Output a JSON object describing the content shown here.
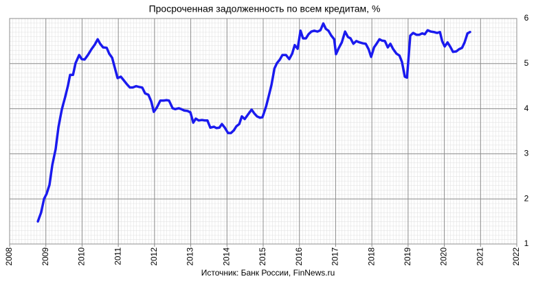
{
  "chart_data": {
    "type": "line",
    "title": "Просроченная задолженность по всем кредитам, %",
    "source": "Источник: Банк России, FinNews.ru",
    "color": "#1a1aee",
    "grid": true,
    "xlim": [
      2008,
      2022
    ],
    "xticks": [
      2008,
      2009,
      2010,
      2011,
      2012,
      2013,
      2014,
      2015,
      2016,
      2017,
      2018,
      2019,
      2020,
      2021,
      2022
    ],
    "ylim": [
      1,
      6
    ],
    "yticks": [
      1,
      2,
      3,
      4,
      5,
      6
    ],
    "x": [
      2008.78,
      2008.87,
      2008.95,
      2009.02,
      2009.1,
      2009.18,
      2009.27,
      2009.35,
      2009.44,
      2009.54,
      2009.61,
      2009.67,
      2009.75,
      2009.82,
      2009.92,
      2009.99,
      2010.07,
      2010.16,
      2010.26,
      2010.35,
      2010.43,
      2010.5,
      2010.58,
      2010.68,
      2010.75,
      2010.83,
      2010.9,
      2010.98,
      2011.07,
      2011.15,
      2011.24,
      2011.32,
      2011.4,
      2011.49,
      2011.59,
      2011.66,
      2011.74,
      2011.83,
      2011.91,
      2011.98,
      2012.06,
      2012.16,
      2012.25,
      2012.33,
      2012.4,
      2012.5,
      2012.57,
      2012.67,
      2012.74,
      2012.82,
      2012.91,
      2012.99,
      2013.07,
      2013.14,
      2013.22,
      2013.31,
      2013.39,
      2013.46,
      2013.54,
      2013.64,
      2013.71,
      2013.79,
      2013.86,
      2013.94,
      2014.03,
      2014.11,
      2014.19,
      2014.26,
      2014.34,
      2014.41,
      2014.49,
      2014.58,
      2014.68,
      2014.76,
      2014.83,
      2014.91,
      2014.98,
      2015.08,
      2015.15,
      2015.23,
      2015.31,
      2015.38,
      2015.46,
      2015.53,
      2015.63,
      2015.72,
      2015.8,
      2015.87,
      2015.95,
      2016.03,
      2016.1,
      2016.18,
      2016.25,
      2016.33,
      2016.41,
      2016.5,
      2016.58,
      2016.66,
      2016.73,
      2016.8,
      2016.88,
      2016.96,
      2017.01,
      2017.09,
      2017.17,
      2017.26,
      2017.34,
      2017.41,
      2017.49,
      2017.57,
      2017.66,
      2017.75,
      2017.83,
      2017.91,
      2017.98,
      2018.06,
      2018.13,
      2018.21,
      2018.28,
      2018.36,
      2018.44,
      2018.51,
      2018.59,
      2018.68,
      2018.76,
      2018.83,
      2018.91,
      2018.97,
      2019.06,
      2019.14,
      2019.23,
      2019.31,
      2019.39,
      2019.46,
      2019.54,
      2019.63,
      2019.71,
      2019.8,
      2019.88,
      2019.94,
      2020.01,
      2020.09,
      2020.16,
      2020.24,
      2020.33,
      2020.41,
      2020.49,
      2020.56,
      2020.64,
      2020.71
    ],
    "values": [
      1.5,
      1.7,
      2.0,
      2.11,
      2.31,
      2.76,
      3.1,
      3.6,
      3.98,
      4.28,
      4.51,
      4.75,
      4.75,
      5.01,
      5.19,
      5.1,
      5.09,
      5.19,
      5.32,
      5.42,
      5.54,
      5.44,
      5.36,
      5.35,
      5.22,
      5.13,
      4.92,
      4.68,
      4.71,
      4.63,
      4.54,
      4.47,
      4.47,
      4.5,
      4.48,
      4.47,
      4.34,
      4.31,
      4.16,
      3.93,
      4.02,
      4.18,
      4.18,
      4.19,
      4.18,
      4.01,
      3.99,
      4.01,
      3.99,
      3.96,
      3.95,
      3.92,
      3.69,
      3.78,
      3.74,
      3.75,
      3.74,
      3.74,
      3.58,
      3.6,
      3.57,
      3.58,
      3.66,
      3.58,
      3.46,
      3.46,
      3.52,
      3.61,
      3.66,
      3.83,
      3.77,
      3.87,
      3.98,
      3.89,
      3.83,
      3.8,
      3.81,
      4.05,
      4.27,
      4.53,
      4.89,
      5.01,
      5.09,
      5.19,
      5.19,
      5.1,
      5.22,
      5.41,
      5.33,
      5.73,
      5.56,
      5.56,
      5.65,
      5.71,
      5.73,
      5.71,
      5.74,
      5.89,
      5.77,
      5.73,
      5.62,
      5.54,
      5.21,
      5.35,
      5.47,
      5.71,
      5.59,
      5.56,
      5.44,
      5.5,
      5.47,
      5.45,
      5.44,
      5.32,
      5.15,
      5.36,
      5.44,
      5.54,
      5.51,
      5.5,
      5.36,
      5.44,
      5.32,
      5.22,
      5.18,
      5.04,
      4.71,
      4.69,
      5.62,
      5.68,
      5.64,
      5.64,
      5.67,
      5.65,
      5.74,
      5.71,
      5.7,
      5.68,
      5.7,
      5.5,
      5.38,
      5.47,
      5.38,
      5.26,
      5.27,
      5.32,
      5.35,
      5.47,
      5.67,
      5.7
    ]
  }
}
